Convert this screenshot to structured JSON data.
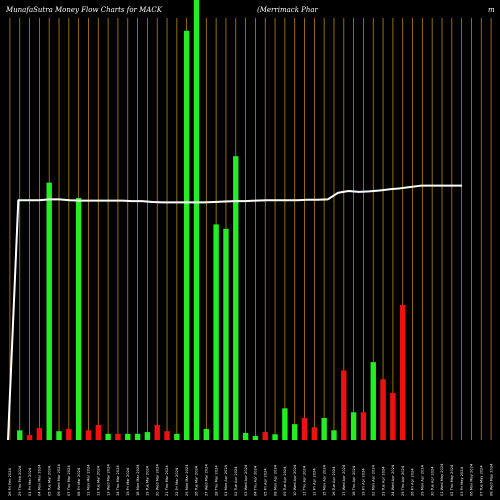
{
  "header": {
    "left": "MunafaSutra  Money Flow  Charts for MACK",
    "right": "(Merrimack Phar",
    "right_tail": "m"
  },
  "chart_data": {
    "type": "bar",
    "colors": {
      "up": "#22ee22",
      "down": "#ee1111",
      "grid": "#b8860b",
      "line": "#ffffff",
      "background": "#000000"
    },
    "categories": [
      "26 Fri Feb 2024",
      "29 Thu Feb 2024",
      "01 Fri Mar 2024",
      "04 Mon Mar 2024",
      "05 Tue Mar 2024",
      "06 Wed Mar 2024",
      "07 Thu Mar 2024",
      "08 Fri Mar 2024",
      "11 Mon Mar 2024",
      "12 Tue Mar 2024",
      "13 Wed Mar 2024",
      "14 Thu Mar 2024",
      "15 Fri Mar 2024",
      "18 Mon Mar 2024",
      "19 Tue Mar 2024",
      "20 Wed Mar 2024",
      "21 Thu Mar 2024",
      "22 Fri Mar 2024",
      "25 Mon Mar 2024",
      "26 Tue Mar 2024",
      "27 Wed Mar 2024",
      "28 Thu Mar 2024",
      "01 Mon Apr 2024",
      "02 Tue Apr 2024",
      "03 Wed Apr 2024",
      "04 Thu Apr 2024",
      "05 Fri Apr 2024",
      "08 Mon Apr 2024",
      "09 Tue Apr 2024",
      "10 Wed Apr 2024",
      "11 Thu Apr 2024",
      "12 Fri Apr 2024",
      "15 Mon Apr 2024",
      "16 Tue Apr 2024",
      "17 Wed Apr 2024",
      "18 Thu Apr 2024",
      "19 Fri Apr 2024",
      "22 Mon Apr 2024",
      "23 Tue Apr 2024",
      "24 Wed Apr 2024",
      "25 Thu Apr 2024",
      "26 Fri Apr 2024",
      "29 Mon Apr 2024",
      "30 Tue Apr 2024",
      "01 Wed May 2024",
      "02 Thu May 2024",
      "03 Fri May 2024",
      "06 Mon May 2024",
      "07 Tue May 2024",
      "08 Wed May 2024"
    ],
    "tick_labels": [
      "26 Fri Feb 2024",
      "29 Thu Feb 2024",
      "01 Fri Mar 2024",
      "04 Mon Mar 2024",
      "05 Tue Mar 2024",
      "06 Wed Mar 2024",
      "07 Thu Mar 2024",
      "08 Fri Mar 2024",
      "11 Mon Mar 2024",
      "12 Tue Mar 2024",
      "13 Wed Mar 2024",
      "14 Thu Mar 2024",
      "15 Fri Mar 2024",
      "18 Mon Mar 2024",
      "19 Tue Mar 2024",
      "20 Wed Mar 2024",
      "21 Thu Mar 2024",
      "22 Fri Mar 2024",
      "25 Mon Mar 2024",
      "26 Tue Mar 2024",
      "27 Wed Mar 2024",
      "28 Thu Mar 2024",
      "01 Mon Apr 2024",
      "02 Tue Apr 2024",
      "03 Wed Apr 2024",
      "04 Thu Apr 2024",
      "05 Fri Apr 2024",
      "08 Mon Apr 2024",
      "09 Tue Apr 2024",
      "10 Wed Apr 2024",
      "11 Thu Apr 2024",
      "12 Fri Apr 2024",
      "15 Mon Apr 2024",
      "16 Tue Apr 2024",
      "17 Wed Apr 2024",
      "18 Thu Apr 2024",
      "19 Fri Apr 2024",
      "22 Mon Apr 2024",
      "23 Tue Apr 2024",
      "24 Wed Apr 2024",
      "25 Thu Apr 2024",
      "26 Fri Apr 2024",
      "29 Mon Apr 2024",
      "30 Tue Apr 2024",
      "01 Wed May 2024",
      "02 Thu May 2024",
      "03 Fri May 2024",
      "06 Mon May 2024",
      "07 Tue May 2024",
      "08 Wed May 2024"
    ],
    "bars": [
      {
        "value": 2.2,
        "dir": "up"
      },
      {
        "value": 1.1,
        "dir": "down"
      },
      {
        "value": 2.7,
        "dir": "down"
      },
      {
        "value": 58.5,
        "dir": "up"
      },
      {
        "value": 2.0,
        "dir": "up"
      },
      {
        "value": 2.5,
        "dir": "down"
      },
      {
        "value": 55.0,
        "dir": "up"
      },
      {
        "value": 2.2,
        "dir": "down"
      },
      {
        "value": 3.4,
        "dir": "down"
      },
      {
        "value": 1.4,
        "dir": "up"
      },
      {
        "value": 1.4,
        "dir": "down"
      },
      {
        "value": 1.4,
        "dir": "up"
      },
      {
        "value": 1.4,
        "dir": "up"
      },
      {
        "value": 1.8,
        "dir": "up"
      },
      {
        "value": 3.4,
        "dir": "down"
      },
      {
        "value": 2.0,
        "dir": "down"
      },
      {
        "value": 1.4,
        "dir": "up"
      },
      {
        "value": 93.0,
        "dir": "up"
      },
      {
        "value": 100.0,
        "dir": "up"
      },
      {
        "value": 2.5,
        "dir": "up"
      },
      {
        "value": 49.0,
        "dir": "up"
      },
      {
        "value": 48.0,
        "dir": "up"
      },
      {
        "value": 64.5,
        "dir": "up"
      },
      {
        "value": 1.6,
        "dir": "up"
      },
      {
        "value": 0.9,
        "dir": "up"
      },
      {
        "value": 1.8,
        "dir": "down"
      },
      {
        "value": 1.3,
        "dir": "up"
      },
      {
        "value": 7.2,
        "dir": "up"
      },
      {
        "value": 3.6,
        "dir": "up"
      },
      {
        "value": 5.0,
        "dir": "down"
      },
      {
        "value": 2.9,
        "dir": "down"
      },
      {
        "value": 5.0,
        "dir": "up"
      },
      {
        "value": 2.2,
        "dir": "up"
      },
      {
        "value": 15.8,
        "dir": "down"
      },
      {
        "value": 6.3,
        "dir": "up"
      },
      {
        "value": 6.3,
        "dir": "down"
      },
      {
        "value": 17.7,
        "dir": "up"
      },
      {
        "value": 13.8,
        "dir": "down"
      },
      {
        "value": 10.7,
        "dir": "down"
      },
      {
        "value": 30.7,
        "dir": "down"
      }
    ],
    "bar_slots": [
      1,
      2,
      3,
      4,
      5,
      6,
      7,
      8,
      9,
      10,
      11,
      12,
      13,
      14,
      15,
      16,
      17,
      18,
      19,
      20,
      21,
      22,
      23,
      24,
      25,
      26,
      27,
      28,
      29,
      30,
      31,
      32,
      33,
      34,
      35,
      36,
      37,
      38,
      39,
      40
    ],
    "price_line": [
      0.0,
      54.5,
      54.5,
      54.5,
      54.7,
      54.7,
      54.5,
      54.4,
      54.4,
      54.4,
      54.4,
      54.4,
      54.3,
      54.3,
      54.1,
      54.0,
      54.0,
      54.0,
      54.0,
      54.0,
      54.1,
      54.2,
      54.3,
      54.3,
      54.4,
      54.5,
      54.5,
      54.5,
      54.5,
      54.6,
      54.6,
      54.7,
      56.2,
      56.6,
      56.4,
      56.5,
      56.7,
      57.0,
      57.2,
      57.5,
      57.8,
      57.8,
      57.8,
      57.8,
      57.8
    ],
    "ylim": [
      0,
      100
    ],
    "grid": true
  }
}
